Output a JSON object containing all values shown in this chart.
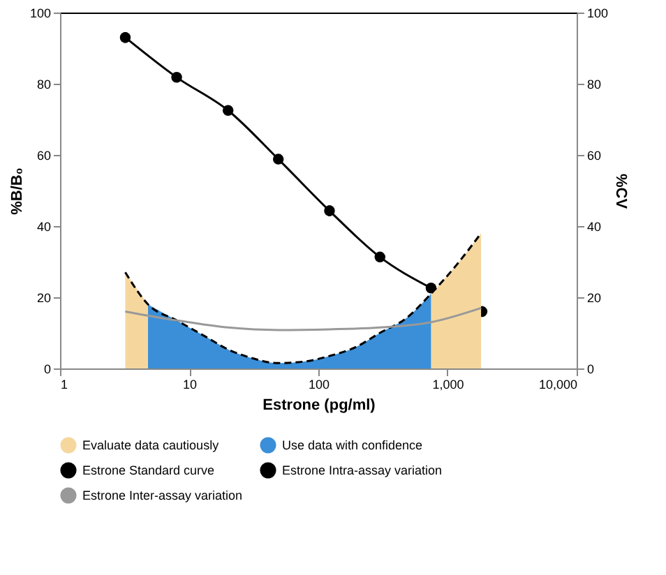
{
  "chart_data": {
    "type": "line",
    "xlabel": "Estrone (pg/ml)",
    "ylabel": "%B/B₀",
    "y2label": "%CV",
    "log": "x",
    "grid": false,
    "legend": "bottom",
    "xlim": [
      1,
      10000
    ],
    "xticks": [
      1,
      10,
      100,
      {
        "value": 1000,
        "label": "1,000"
      },
      {
        "value": 10000,
        "label": "10,000"
      }
    ],
    "ylim": [
      0,
      100
    ],
    "yticks": [
      0,
      20,
      40,
      60,
      80,
      100
    ],
    "y2lim": [
      0,
      100
    ],
    "y2ticks": [
      0,
      20,
      40,
      60,
      80,
      100
    ],
    "series": [
      {
        "name": "Evaluate data cautiously",
        "type": "area",
        "axis": "y2",
        "color": "#f5d79e",
        "x": [
          3.2,
          4.8,
          100,
          746,
          1170,
          1820
        ],
        "values": [
          27,
          18,
          null,
          21,
          29,
          38
        ]
      },
      {
        "name": "Use data with confidence",
        "type": "area",
        "axis": "y2",
        "color": "#3a8fd8",
        "x": [
          4.8,
          8,
          13.3,
          19.6,
          30,
          49,
          80,
          122,
          195,
          300,
          475,
          746
        ],
        "values": [
          18,
          13.5,
          9,
          5.5,
          3,
          1.5,
          2,
          3.5,
          6,
          10,
          14,
          21
        ]
      },
      {
        "name": "Estrone Standard curve",
        "color": "#000000",
        "marker": "circle",
        "x": [
          3.2,
          8,
          20,
          49,
          122,
          300,
          746,
          1850
        ],
        "values": [
          93,
          81.8,
          72.5,
          58.8,
          44.3,
          31.3,
          22.6,
          16
        ],
        "errors": [
          1.5,
          1,
          1.2,
          0.5,
          1.5,
          0.5,
          0.8,
          1.5
        ]
      },
      {
        "name": "Estrone Intra-assay variation",
        "axis": "y2",
        "color": "#000000",
        "line_style": "dashed",
        "x": [
          3.2,
          4.8,
          8,
          13.3,
          19.6,
          30,
          49,
          80,
          122,
          195,
          300,
          475,
          746,
          1170,
          1820
        ],
        "values": [
          27,
          18,
          13.5,
          9,
          5.5,
          3,
          1.5,
          2,
          3.5,
          6,
          10,
          14,
          21,
          29,
          38
        ]
      },
      {
        "name": "Estrone Inter-assay variation",
        "axis": "y2",
        "color": "#999999",
        "x": [
          3.2,
          8,
          20,
          49,
          122,
          300,
          746,
          1820
        ],
        "values": [
          16,
          13.5,
          11.5,
          10.8,
          11,
          11.5,
          13,
          17
        ]
      }
    ]
  }
}
